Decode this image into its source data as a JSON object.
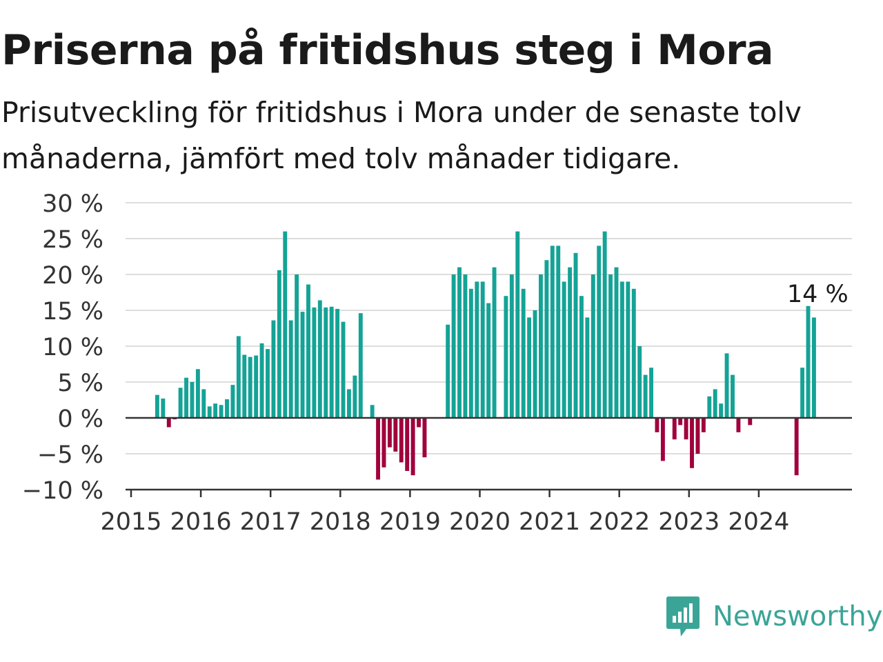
{
  "header": {
    "title": "Priserna på fritidshus steg i Mora",
    "subtitle": "Prisutveckling för fritidshus i Mora under de senaste tolv månaderna, jämfört med tolv månader tidigare."
  },
  "brand": {
    "name": "Newsworthy",
    "icon": "newsworthy-logo-icon",
    "color": "#3aa597"
  },
  "colors": {
    "positive": "#14a396",
    "negative": "#a0003c",
    "grid": "#dddddd",
    "axis": "#333333",
    "text": "#333333"
  },
  "chart_data": {
    "type": "bar",
    "title": "Priserna på fritidshus steg i Mora",
    "subtitle": "Prisutveckling för fritidshus i Mora under de senaste tolv månaderna, jämfört med tolv månader tidigare.",
    "unit": "%",
    "ylim": [
      -10,
      30
    ],
    "yticks": [
      30,
      25,
      20,
      15,
      10,
      5,
      0,
      -5,
      -10
    ],
    "ytick_labels": [
      "30 %",
      "25 %",
      "20 %",
      "15 %",
      "10 %",
      "5 %",
      "0 %",
      "−5 %",
      "−10 %"
    ],
    "xticks": [
      "2015",
      "2016",
      "2017",
      "2018",
      "2019",
      "2020",
      "2021",
      "2022",
      "2023",
      "2024"
    ],
    "grid": true,
    "annotation": {
      "text": "14 %",
      "date": "2024-11"
    },
    "series": [
      {
        "values": [
          [
            "2015-05",
            3.2
          ],
          [
            "2015-06",
            2.7
          ],
          [
            "2015-07",
            -1.3
          ],
          [
            "2015-08",
            -0.2
          ],
          [
            "2015-09",
            4.2
          ],
          [
            "2015-10",
            5.6
          ],
          [
            "2015-11",
            5.0
          ],
          [
            "2015-12",
            6.8
          ],
          [
            "2016-01",
            4.0
          ],
          [
            "2016-02",
            1.6
          ],
          [
            "2016-03",
            2.0
          ],
          [
            "2016-04",
            1.8
          ],
          [
            "2016-05",
            2.6
          ],
          [
            "2016-06",
            4.6
          ],
          [
            "2016-07",
            11.4
          ],
          [
            "2016-08",
            8.8
          ],
          [
            "2016-09",
            8.5
          ],
          [
            "2016-10",
            8.7
          ],
          [
            "2016-11",
            10.4
          ],
          [
            "2016-12",
            9.6
          ],
          [
            "2017-01",
            13.6
          ],
          [
            "2017-02",
            20.6
          ],
          [
            "2017-03",
            26.0
          ],
          [
            "2017-04",
            13.6
          ],
          [
            "2017-05",
            20.0
          ],
          [
            "2017-06",
            14.8
          ],
          [
            "2017-07",
            18.6
          ],
          [
            "2017-08",
            15.4
          ],
          [
            "2017-09",
            16.4
          ],
          [
            "2017-10",
            15.4
          ],
          [
            "2017-11",
            15.5
          ],
          [
            "2017-12",
            15.2
          ],
          [
            "2018-01",
            13.4
          ],
          [
            "2018-02",
            4.0
          ],
          [
            "2018-03",
            5.9
          ],
          [
            "2018-04",
            14.6
          ],
          [
            "2018-06",
            1.8
          ],
          [
            "2018-07",
            -8.6
          ],
          [
            "2018-08",
            -6.9
          ],
          [
            "2018-09",
            -4.1
          ],
          [
            "2018-10",
            -4.7
          ],
          [
            "2018-11",
            -6.2
          ],
          [
            "2018-12",
            -7.4
          ],
          [
            "2019-01",
            -8.0
          ],
          [
            "2019-02",
            -1.3
          ],
          [
            "2019-03",
            -5.5
          ],
          [
            "2019-07",
            13.0
          ],
          [
            "2019-08",
            20.0
          ],
          [
            "2019-09",
            21.0
          ],
          [
            "2019-10",
            20.0
          ],
          [
            "2019-11",
            18.0
          ],
          [
            "2019-12",
            19.0
          ],
          [
            "2020-01",
            19.0
          ],
          [
            "2020-02",
            16.0
          ],
          [
            "2020-03",
            21.0
          ],
          [
            "2020-05",
            17.0
          ],
          [
            "2020-06",
            20.0
          ],
          [
            "2020-07",
            26.0
          ],
          [
            "2020-08",
            18.0
          ],
          [
            "2020-09",
            14.0
          ],
          [
            "2020-10",
            15.0
          ],
          [
            "2020-11",
            20.0
          ],
          [
            "2020-12",
            22.0
          ],
          [
            "2021-01",
            24.0
          ],
          [
            "2021-02",
            24.0
          ],
          [
            "2021-03",
            19.0
          ],
          [
            "2021-04",
            21.0
          ],
          [
            "2021-05",
            23.0
          ],
          [
            "2021-06",
            17.0
          ],
          [
            "2021-07",
            14.0
          ],
          [
            "2021-08",
            20.0
          ],
          [
            "2021-09",
            24.0
          ],
          [
            "2021-10",
            26.0
          ],
          [
            "2021-11",
            20.0
          ],
          [
            "2021-12",
            21.0
          ],
          [
            "2022-01",
            19.0
          ],
          [
            "2022-02",
            19.0
          ],
          [
            "2022-03",
            18.0
          ],
          [
            "2022-04",
            10.0
          ],
          [
            "2022-05",
            6.0
          ],
          [
            "2022-06",
            7.0
          ],
          [
            "2022-07",
            -2.0
          ],
          [
            "2022-08",
            -6.0
          ],
          [
            "2022-10",
            -3.0
          ],
          [
            "2022-11",
            -1.0
          ],
          [
            "2022-12",
            -3.0
          ],
          [
            "2023-01",
            -7.0
          ],
          [
            "2023-02",
            -5.0
          ],
          [
            "2023-03",
            -2.0
          ],
          [
            "2023-04",
            3.0
          ],
          [
            "2023-05",
            4.0
          ],
          [
            "2023-06",
            2.0
          ],
          [
            "2023-07",
            9.0
          ],
          [
            "2023-08",
            6.0
          ],
          [
            "2023-09",
            -2.0
          ],
          [
            "2023-11",
            -1.0
          ],
          [
            "2024-07",
            -8.0
          ],
          [
            "2024-08",
            7.0
          ],
          [
            "2024-09",
            15.6
          ],
          [
            "2024-10",
            14.0
          ]
        ]
      }
    ]
  }
}
